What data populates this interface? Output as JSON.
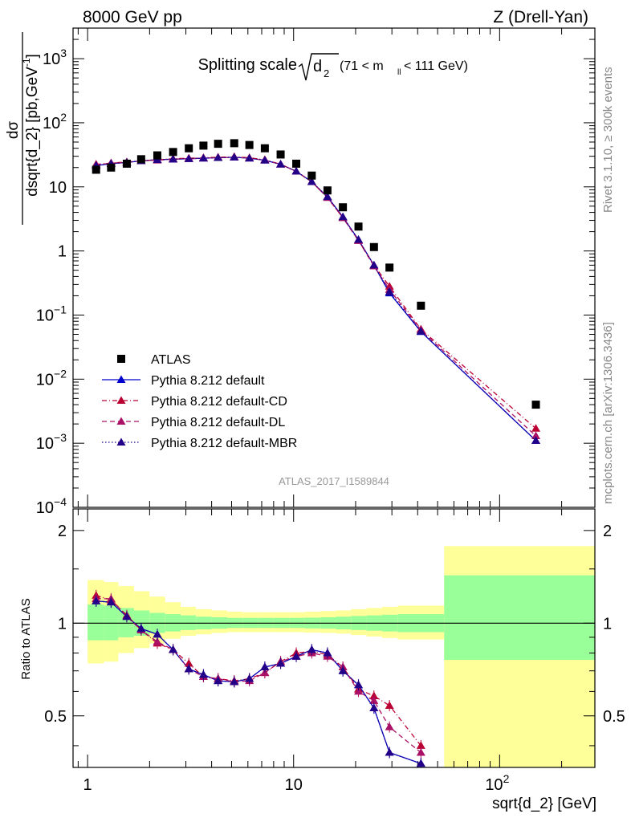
{
  "header": {
    "left": "8000 GeV pp",
    "right": "Z (Drell-Yan)"
  },
  "side_labels": {
    "rivet": "Rivet 3.1.10, ≥ 300k events",
    "mcplots": "mcplots.cern.ch [arXiv:1306.3436]"
  },
  "chart_data": [
    {
      "type": "scatter",
      "title_main": "Splitting scale",
      "title_sqrt_arg": "d",
      "title_sqrt_sub": "2",
      "title_cut_a": "(71 < m",
      "title_cut_sub": "ll",
      "title_cut_b": " < 111 GeV)",
      "analysis_tag": "ATLAS_2017_I1589844",
      "ylabel_num": "dσ",
      "ylabel_den": "dsqrt{d_2} [pb,GeV",
      "ylabel_den_sup": "-1",
      "ylabel_den_close": "]",
      "xscale": "log",
      "yscale": "log",
      "xlim": [
        0.85,
        290
      ],
      "ylim": [
        0.0001,
        3000
      ],
      "y_ticks": [
        {
          "v": 1000,
          "base": "10",
          "exp": "3"
        },
        {
          "v": 100,
          "base": "10",
          "exp": "2"
        },
        {
          "v": 10,
          "base": "10",
          "exp": ""
        },
        {
          "v": 1,
          "base": "1",
          "exp": ""
        },
        {
          "v": 0.1,
          "base": "10",
          "exp": "−1"
        },
        {
          "v": 0.01,
          "base": "10",
          "exp": "−2"
        },
        {
          "v": 0.001,
          "base": "10",
          "exp": "−3"
        },
        {
          "v": 0.0001,
          "base": "10",
          "exp": "−4"
        }
      ],
      "x": [
        1.1,
        1.3,
        1.55,
        1.82,
        2.18,
        2.6,
        3.1,
        3.65,
        4.3,
        5.15,
        6.1,
        7.25,
        8.65,
        10.3,
        12.25,
        14.6,
        17.35,
        20.65,
        24.55,
        29.2,
        41.5,
        150
      ],
      "series": [
        {
          "name": "ATLAS",
          "color": "#000000",
          "marker": "square",
          "line": "none",
          "values": [
            18.5,
            20,
            23,
            27,
            31,
            35,
            40,
            44,
            47,
            48,
            45,
            40,
            32,
            23,
            15,
            8.8,
            4.8,
            2.4,
            1.15,
            0.55,
            0.14,
            0.004
          ]
        },
        {
          "name": "Pythia 8.212 default",
          "color": "#0000cc",
          "marker": "triangle",
          "line": "solid",
          "values": [
            21.5,
            23,
            24,
            25.5,
            26.5,
            27,
            27.5,
            28,
            28.5,
            29,
            28,
            26,
            22.5,
            17.5,
            12,
            7,
            3.4,
            1.5,
            0.6,
            0.22,
            0.055,
            0.0011
          ]
        },
        {
          "name": "Pythia 8.212 default-CD",
          "color": "#bb0033",
          "marker": "triangle",
          "line": "dashdot",
          "values": [
            22.5,
            23.5,
            24.5,
            25.5,
            26.5,
            27.5,
            28,
            28.5,
            29,
            29.5,
            28.5,
            26.5,
            22.5,
            17.5,
            12,
            6.8,
            3.3,
            1.45,
            0.6,
            0.28,
            0.06,
            0.0017
          ]
        },
        {
          "name": "Pythia 8.212 default-DL",
          "color": "#aa1166",
          "marker": "triangle",
          "line": "dashed",
          "values": [
            22,
            23.5,
            24,
            25.5,
            26,
            27,
            27.5,
            28,
            28.5,
            29,
            28,
            26,
            22.5,
            17.5,
            12,
            6.8,
            3.3,
            1.45,
            0.58,
            0.25,
            0.058,
            0.0013
          ]
        },
        {
          "name": "Pythia 8.212 default-MBR",
          "color": "#220088",
          "marker": "triangle",
          "line": "dotted",
          "values": [
            21.5,
            23,
            24,
            25.5,
            26.5,
            27,
            27.5,
            28,
            28.5,
            29,
            28,
            26,
            22.5,
            17.5,
            12,
            7,
            3.4,
            1.5,
            0.6,
            0.23,
            0.056,
            0.0011
          ]
        }
      ]
    },
    {
      "type": "line",
      "ylabel": "Ratio to ATLAS",
      "xlabel": "sqrt{d_2} [GeV]",
      "xscale": "log",
      "yscale": "log",
      "xlim": [
        0.85,
        290
      ],
      "ylim": [
        0.34,
        2.35
      ],
      "y_ticks": [
        {
          "v": 2,
          "label": "2"
        },
        {
          "v": 1,
          "label": "1"
        },
        {
          "v": 0.5,
          "label": "0.5"
        }
      ],
      "x_ticks": [
        {
          "v": 1,
          "base": "1",
          "exp": ""
        },
        {
          "v": 10,
          "base": "10",
          "exp": ""
        },
        {
          "v": 100,
          "base": "10",
          "exp": "2"
        }
      ],
      "bin_edges": [
        1.0,
        1.2,
        1.41,
        1.68,
        2.0,
        2.38,
        2.83,
        3.36,
        4.0,
        4.76,
        5.66,
        6.73,
        8.0,
        9.51,
        11.3,
        13.5,
        16.0,
        19.0,
        22.6,
        26.9,
        32.0,
        53.8,
        290
      ],
      "band_inner_lo": [
        0.88,
        0.88,
        0.9,
        0.91,
        0.93,
        0.94,
        0.95,
        0.955,
        0.96,
        0.965,
        0.965,
        0.965,
        0.965,
        0.965,
        0.962,
        0.96,
        0.955,
        0.95,
        0.945,
        0.94,
        0.935,
        0.76
      ],
      "band_inner_hi": [
        1.15,
        1.14,
        1.12,
        1.1,
        1.08,
        1.07,
        1.06,
        1.05,
        1.045,
        1.04,
        1.04,
        1.04,
        1.04,
        1.04,
        1.042,
        1.045,
        1.05,
        1.055,
        1.06,
        1.065,
        1.07,
        1.43
      ],
      "band_outer_lo": [
        0.74,
        0.75,
        0.8,
        0.83,
        0.86,
        0.89,
        0.91,
        0.92,
        0.93,
        0.935,
        0.935,
        0.935,
        0.935,
        0.935,
        0.932,
        0.93,
        0.925,
        0.915,
        0.905,
        0.895,
        0.885,
        0.34
      ],
      "band_outer_hi": [
        1.38,
        1.36,
        1.32,
        1.27,
        1.22,
        1.17,
        1.13,
        1.11,
        1.1,
        1.09,
        1.085,
        1.085,
        1.085,
        1.085,
        1.09,
        1.095,
        1.1,
        1.11,
        1.12,
        1.13,
        1.14,
        1.78
      ],
      "band_colors": {
        "inner": "#99ff99",
        "outer": "#ffff99"
      },
      "x": [
        1.1,
        1.3,
        1.55,
        1.82,
        2.18,
        2.6,
        3.1,
        3.65,
        4.3,
        5.15,
        6.1,
        7.25,
        8.65,
        10.3,
        12.25,
        14.6,
        17.35,
        20.65,
        24.55,
        29.2,
        41.5
      ],
      "series": [
        {
          "name": "Pythia 8.212 default",
          "color": "#0000cc",
          "line": "solid",
          "values": [
            1.18,
            1.17,
            1.05,
            0.96,
            0.92,
            0.82,
            0.71,
            0.68,
            0.65,
            0.645,
            0.66,
            0.72,
            0.74,
            0.78,
            0.82,
            0.8,
            0.7,
            0.63,
            0.53,
            0.38,
            0.35
          ]
        },
        {
          "name": "Pythia 8.212 default-CD",
          "color": "#bb0033",
          "line": "dashdot",
          "values": [
            1.23,
            1.19,
            1.06,
            0.95,
            0.86,
            0.82,
            0.74,
            0.67,
            0.66,
            0.65,
            0.66,
            0.69,
            0.75,
            0.8,
            0.81,
            0.79,
            0.72,
            0.61,
            0.58,
            0.54,
            0.4
          ]
        },
        {
          "name": "Pythia 8.212 default-DL",
          "color": "#aa1166",
          "line": "dashed",
          "values": [
            1.2,
            1.2,
            1.05,
            0.95,
            0.87,
            0.82,
            0.71,
            0.67,
            0.66,
            0.645,
            0.65,
            0.69,
            0.75,
            0.78,
            0.8,
            0.78,
            0.72,
            0.6,
            0.56,
            0.46,
            0.38
          ]
        },
        {
          "name": "Pythia 8.212 default-MBR",
          "color": "#220088",
          "line": "dotted",
          "values": [
            1.18,
            1.17,
            1.05,
            0.96,
            0.92,
            0.82,
            0.71,
            0.68,
            0.65,
            0.645,
            0.66,
            0.72,
            0.74,
            0.78,
            0.82,
            0.8,
            0.7,
            0.63,
            0.53,
            0.38,
            0.35
          ]
        }
      ]
    }
  ]
}
